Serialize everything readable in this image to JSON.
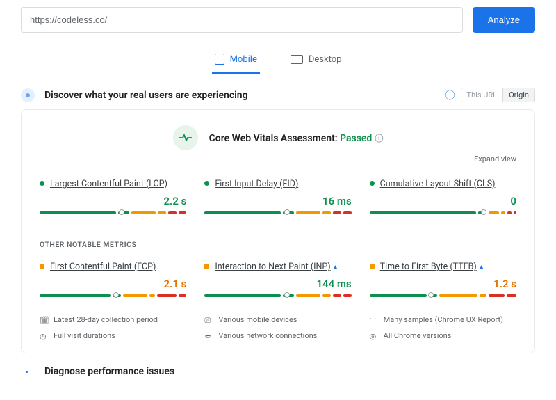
{
  "search": {
    "value": "https://codeless.co/",
    "button": "Analyze"
  },
  "tabs": {
    "mobile": "Mobile",
    "desktop": "Desktop"
  },
  "discover": {
    "title": "Discover what your real users are experiencing",
    "pillThis": "This URL",
    "pillOrigin": "Origin"
  },
  "assessment": {
    "label": "Core Web Vitals Assessment: ",
    "status": "Passed",
    "expand": "Expand view"
  },
  "colors": {
    "green": "#0d904f",
    "orange": "#f29900",
    "red": "#d93025"
  },
  "core": [
    {
      "name": "Largest Contentful Paint (LCP)",
      "value": "2.2 s",
      "status": "green",
      "segments": [
        56,
        8,
        18,
        6,
        6,
        6
      ],
      "marker": 56
    },
    {
      "name": "First Input Delay (FID)",
      "value": "16 ms",
      "status": "green",
      "segments": [
        56,
        8,
        18,
        6,
        6,
        6
      ],
      "marker": 56
    },
    {
      "name": "Cumulative Layout Shift (CLS)",
      "value": "0",
      "status": "green",
      "segments": [
        78,
        6,
        8,
        3,
        3,
        2
      ],
      "marker": 78
    }
  ],
  "otherLabel": "OTHER NOTABLE METRICS",
  "other": [
    {
      "name": "First Contentful Paint (FCP)",
      "value": "2.1 s",
      "status": "orange",
      "segments": [
        52,
        6,
        18,
        4,
        14,
        6
      ],
      "marker": 52
    },
    {
      "name": "Interaction to Next Paint (INP)",
      "value": "144 ms",
      "status": "green",
      "caret": true,
      "segments": [
        56,
        8,
        18,
        6,
        6,
        6
      ],
      "marker": 56
    },
    {
      "name": "Time to First Byte (TTFB)",
      "value": "1.2 s",
      "status": "orange",
      "caret": true,
      "segments": [
        42,
        6,
        28,
        5,
        12,
        7
      ],
      "marker": 42
    }
  ],
  "footer": {
    "c0": "Latest 28-day collection period",
    "c1": "Various mobile devices",
    "c2a": "Many samples (",
    "c2b": "Chrome UX Report",
    "c2c": ")",
    "c3": "Full visit durations",
    "c4": "Various network connections",
    "c5": "All Chrome versions"
  },
  "diagnose": "Diagnose performance issues"
}
